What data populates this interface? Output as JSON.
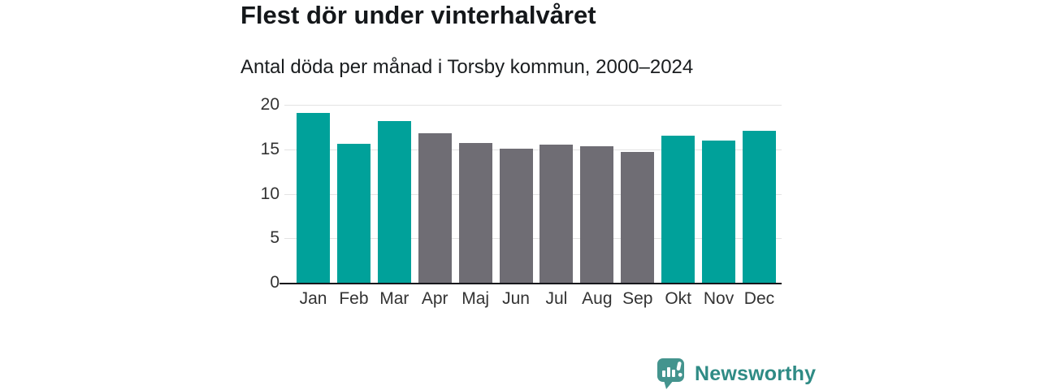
{
  "chart_data": {
    "type": "bar",
    "title": "Flest dör under vinterhalvåret",
    "subtitle": "Antal döda per månad i Torsby kommun, 2000–2024",
    "categories": [
      "Jan",
      "Feb",
      "Mar",
      "Apr",
      "Maj",
      "Jun",
      "Jul",
      "Aug",
      "Sep",
      "Okt",
      "Nov",
      "Dec"
    ],
    "values": [
      19.1,
      15.6,
      18.2,
      16.8,
      15.7,
      15.1,
      15.5,
      15.3,
      14.7,
      16.5,
      16.0,
      17.1
    ],
    "bar_season": [
      "winter",
      "winter",
      "winter",
      "summer",
      "summer",
      "summer",
      "summer",
      "summer",
      "summer",
      "winter",
      "winter",
      "winter"
    ],
    "palette": {
      "winter": "#00a19a",
      "summer": "#6f6d74"
    },
    "xlabel": "",
    "ylabel": "",
    "ylim": [
      0,
      20
    ],
    "yticks": [
      0,
      5,
      10,
      15,
      20
    ],
    "grid": true,
    "legend_position": "none"
  },
  "branding": {
    "wordmark": "Newsworthy",
    "logo_icon": "speech-bubble-with-bar-chart-and-exclamation",
    "bubble_color": "#44948e",
    "wordmark_color": "#2f8b85"
  },
  "colors": {
    "winter_bar": "#00a19a",
    "summer_bar": "#6f6d74",
    "gridline": "#e3e3e3",
    "axis_line": "#17171c",
    "title_text": "#14171a",
    "tick_text": "#333333",
    "background": "#ffffff"
  }
}
